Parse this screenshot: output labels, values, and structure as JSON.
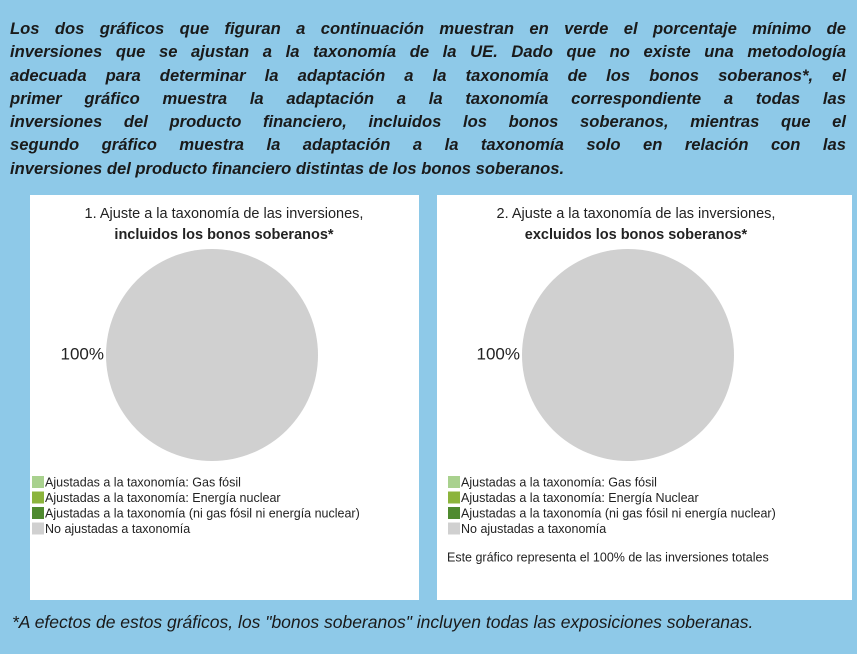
{
  "intro": [
    "Los dos gráficos que figuran a continuación muestran en verde el porcentaje mínimo de",
    "inversiones que se ajustan a  la taxonomía de la UE. Dado que no existe una metodología",
    "adecuada para determinar la adaptación a la taxonomía de los bonos soberanos*, el",
    "primer gráfico muestra la adaptación a la taxonomía correspondiente a todas las",
    "inversiones del producto financiero, incluidos los bonos soberanos, mientras que el",
    "segundo gráfico muestra la adaptación a la taxonomía solo en relación con las",
    "inversiones del producto financiero distintas de los bonos soberanos."
  ],
  "footnote": "*A efectos de estos gráficos, los \"bonos soberanos\" incluyen todas las exposiciones soberanas.",
  "chart_data": [
    {
      "type": "pie",
      "title": "1. Ajuste a la taxonomía de las inversiones,",
      "subtitle": "incluidos los bonos soberanos*",
      "categories": [
        "Ajustadas a la taxonomía: Gas fósil",
        "Ajustadas a la taxonomía: Energía nuclear",
        "Ajustadas a la taxonomía (ni gas fósil ni energía nuclear)",
        "No ajustadas a taxonomía"
      ],
      "values": [
        0,
        0,
        0,
        100
      ],
      "value_labels": [
        null,
        null,
        null,
        "100%"
      ],
      "colors": [
        "#a9d18e",
        "#8cb43c",
        "#4f8a2f",
        "#d0d0d0"
      ]
    },
    {
      "type": "pie",
      "title": "2. Ajuste a la taxonomía de las inversiones,",
      "subtitle": "excluidos los bonos soberanos*",
      "categories": [
        "Ajustadas a la taxonomía: Gas fósil",
        "Ajustadas a la taxonomía: Energía Nuclear",
        "Ajustadas a la taxonomía (ni gas fósil ni energía nuclear)",
        "No ajustadas a taxonomía"
      ],
      "values": [
        0,
        0,
        0,
        100
      ],
      "value_labels": [
        null,
        null,
        null,
        "100%"
      ],
      "colors": [
        "#a9d18e",
        "#8cb43c",
        "#4f8a2f",
        "#d0d0d0"
      ],
      "note": "Este gráfico representa el 100% de las inversiones totales"
    }
  ]
}
